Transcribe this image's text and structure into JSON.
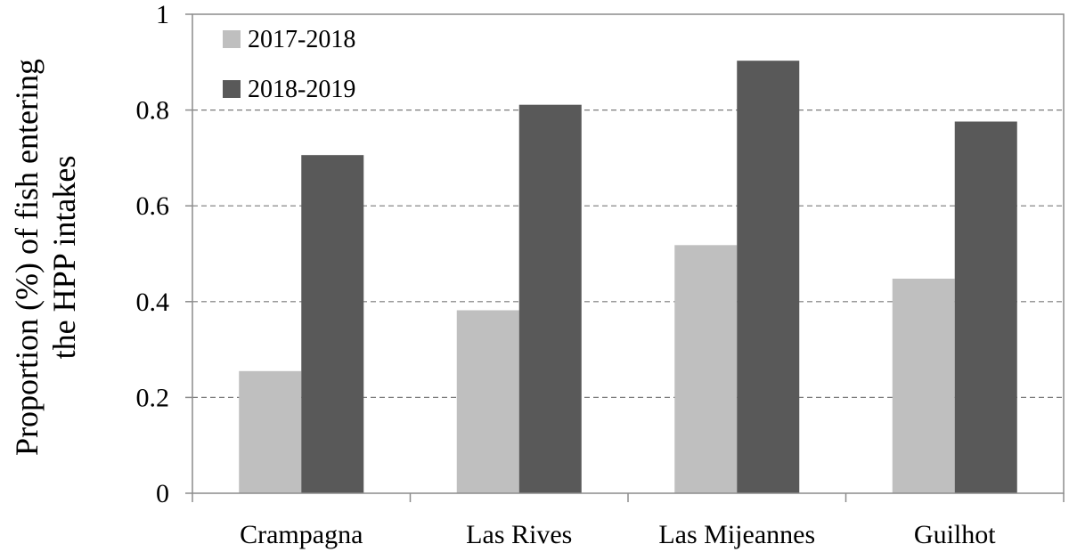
{
  "chart_data": {
    "type": "bar",
    "categories": [
      "Crampagna",
      "Las Rives",
      "Las Mijeannes",
      "Guilhot"
    ],
    "series": [
      {
        "name": "2017-2018",
        "values": [
          0.255,
          0.382,
          0.518,
          0.448
        ],
        "color": "#bfbfbf"
      },
      {
        "name": "2018-2019",
        "values": [
          0.706,
          0.811,
          0.903,
          0.776
        ],
        "color": "#595959"
      }
    ],
    "ylabel_lines": [
      "Proportion  (%) of fish entering",
      "the HPP intakes"
    ],
    "xlabel": "",
    "ylim": [
      0,
      1
    ],
    "yticks": [
      "0",
      "0.2",
      "0.4",
      "0.6",
      "0.8",
      "1"
    ],
    "grid": "horizontal dashed",
    "legend_position": "top-left"
  }
}
